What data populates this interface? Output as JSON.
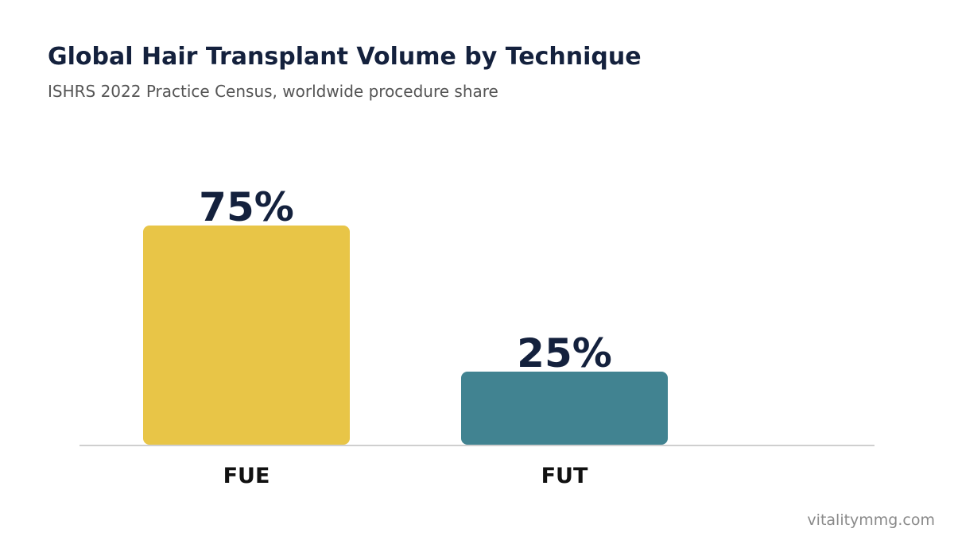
{
  "chart_data": {
    "type": "bar",
    "title": "Global Hair Transplant Volume by Technique",
    "subtitle": "ISHRS 2022 Practice Census, worldwide procedure share",
    "categories": [
      "FUE",
      "FUT"
    ],
    "values": [
      75,
      25
    ],
    "data_labels": [
      "75%",
      "25%"
    ],
    "colors": [
      "#e8c547",
      "#418391"
    ],
    "ylim": [
      0,
      100
    ],
    "grid": false,
    "legend": "none"
  },
  "footer": {
    "watermark": "vitalitymmg.com"
  }
}
